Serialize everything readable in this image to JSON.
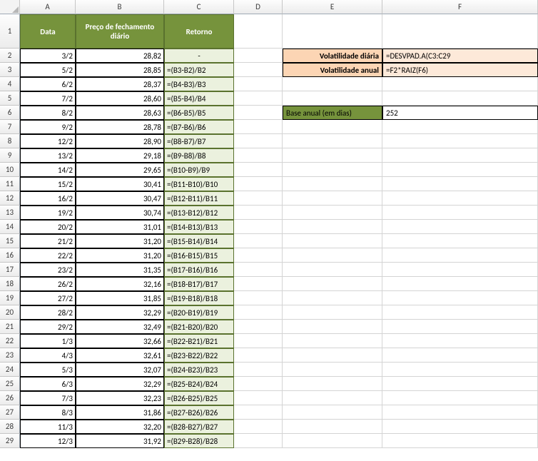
{
  "colHeaders": [
    "A",
    "B",
    "C",
    "D",
    "E",
    "F"
  ],
  "rowCount": 29,
  "headers": {
    "A": "Data",
    "B": "Preço de fechamento diário",
    "C": "Retorno"
  },
  "side": {
    "vol_daily_label": "Volatilidade diária",
    "vol_daily_formula": "=DESVPAD.A(C3:C29",
    "vol_annual_label": "Volatilidade anual",
    "vol_annual_formula": "=F2*RAIZ(F6)",
    "base_label": "Base anual (em dias)",
    "base_value": "252"
  },
  "rows": [
    {
      "date": "3/2",
      "price": "28,82",
      "ret": "-"
    },
    {
      "date": "5/2",
      "price": "28,85",
      "ret": "=(B3-B2)/B2"
    },
    {
      "date": "6/2",
      "price": "28,37",
      "ret": "=(B4-B3)/B3"
    },
    {
      "date": "7/2",
      "price": "28,60",
      "ret": "=(B5-B4)/B4"
    },
    {
      "date": "8/2",
      "price": "28,63",
      "ret": "=(B6-B5)/B5"
    },
    {
      "date": "9/2",
      "price": "28,78",
      "ret": "=(B7-B6)/B6"
    },
    {
      "date": "12/2",
      "price": "28,90",
      "ret": "=(B8-B7)/B7"
    },
    {
      "date": "13/2",
      "price": "29,18",
      "ret": "=(B9-B8)/B8"
    },
    {
      "date": "14/2",
      "price": "29,65",
      "ret": "=(B10-B9)/B9"
    },
    {
      "date": "15/2",
      "price": "30,41",
      "ret": "=(B11-B10)/B10"
    },
    {
      "date": "16/2",
      "price": "30,47",
      "ret": "=(B12-B11)/B11"
    },
    {
      "date": "19/2",
      "price": "30,74",
      "ret": "=(B13-B12)/B12"
    },
    {
      "date": "20/2",
      "price": "31,01",
      "ret": "=(B14-B13)/B13"
    },
    {
      "date": "21/2",
      "price": "31,20",
      "ret": "=(B15-B14)/B14"
    },
    {
      "date": "22/2",
      "price": "31,20",
      "ret": "=(B16-B15)/B15"
    },
    {
      "date": "23/2",
      "price": "31,35",
      "ret": "=(B17-B16)/B16"
    },
    {
      "date": "26/2",
      "price": "32,16",
      "ret": "=(B18-B17)/B17"
    },
    {
      "date": "27/2",
      "price": "31,85",
      "ret": "=(B19-B18)/B18"
    },
    {
      "date": "28/2",
      "price": "32,29",
      "ret": "=(B20-B19)/B19"
    },
    {
      "date": "29/2",
      "price": "32,49",
      "ret": "=(B21-B20)/B20"
    },
    {
      "date": "1/3",
      "price": "32,66",
      "ret": "=(B22-B21)/B21"
    },
    {
      "date": "4/3",
      "price": "32,61",
      "ret": "=(B23-B22)/B22"
    },
    {
      "date": "5/3",
      "price": "32,07",
      "ret": "=(B24-B23)/B23"
    },
    {
      "date": "6/3",
      "price": "32,29",
      "ret": "=(B25-B24)/B24"
    },
    {
      "date": "7/3",
      "price": "32,23",
      "ret": "=(B26-B25)/B25"
    },
    {
      "date": "8/3",
      "price": "31,86",
      "ret": "=(B27-B26)/B26"
    },
    {
      "date": "11/3",
      "price": "32,20",
      "ret": "=(B28-B27)/B27"
    },
    {
      "date": "12/3",
      "price": "31,92",
      "ret": "=(B29-B28)/B28"
    }
  ],
  "colors": {
    "hdr_green": "#76933c",
    "lt_green": "#ebf1de",
    "orange_lbl": "#fcd5b4",
    "orange_val": "#fde9d9"
  }
}
